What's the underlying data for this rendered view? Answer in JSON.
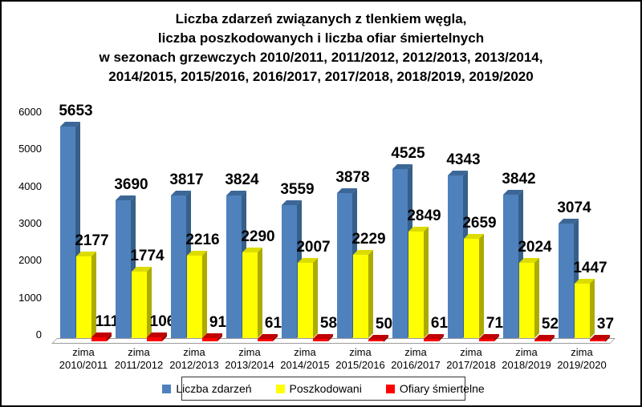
{
  "chart_data": {
    "type": "bar",
    "style": "3d-clustered-column",
    "title_lines": [
      "Liczba zdarzeń związanych z tlenkiem węgla,",
      "liczba poszkodowanych i liczba ofiar śmiertelnych",
      "w sezonach grzewczych 2010/2011, 2011/2012, 2012/2013, 2013/2014,",
      "2014/2015, 2015/2016, 2016/2017, 2017/2018, 2018/2019, 2019/2020"
    ],
    "category_prefix": "zima",
    "categories": [
      "2010/2011",
      "2011/2012",
      "2012/2013",
      "2013/2014",
      "2014/2015",
      "2015/2016",
      "2016/2017",
      "2017/2018",
      "2018/2019",
      "2019/2020"
    ],
    "series": [
      {
        "name": "Liczba zdarzeń",
        "color": "#4F81BD",
        "color_top": "#3B6796",
        "color_side": "#365F8A",
        "values": [
          5653,
          3690,
          3817,
          3824,
          3559,
          3878,
          4525,
          4343,
          3842,
          3074
        ]
      },
      {
        "name": "Poszkodowani",
        "color": "#FFFF00",
        "color_top": "#DCDC00",
        "color_side": "#ABAB00",
        "values": [
          2177,
          1774,
          2216,
          2290,
          2007,
          2229,
          2849,
          2659,
          2024,
          1447
        ]
      },
      {
        "name": "Ofiary śmiertelne",
        "color": "#FF0000",
        "color_top": "#C00000",
        "color_side": "#A00000",
        "values": [
          111,
          106,
          91,
          61,
          58,
          50,
          61,
          71,
          52,
          37
        ]
      }
    ],
    "y_ticks": [
      0,
      1000,
      2000,
      3000,
      4000,
      5000,
      6000
    ],
    "ylim": [
      0,
      6000
    ],
    "grid": false,
    "legend_position": "bottom"
  }
}
